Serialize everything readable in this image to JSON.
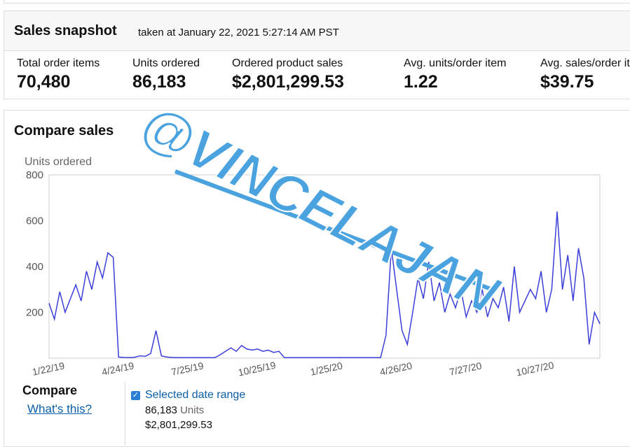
{
  "header": {
    "title": "Sales snapshot",
    "subtitle": "taken at January 22, 2021 5:27:14 AM PST"
  },
  "metrics": [
    {
      "label": "Total order items",
      "value": "70,480"
    },
    {
      "label": "Units ordered",
      "value": "86,183"
    },
    {
      "label": "Ordered product sales",
      "value": "$2,801,299.53"
    },
    {
      "label": "Avg. units/order item",
      "value": "1.22"
    },
    {
      "label": "Avg. sales/order item",
      "value": "$39.75"
    }
  ],
  "chart_data": {
    "type": "line",
    "title": "Compare sales",
    "y_label": "Units ordered",
    "color": "#3b3fd8",
    "categories": [
      "1/22/19",
      null,
      null,
      null,
      null,
      null,
      null,
      null,
      null,
      null,
      null,
      null,
      null,
      "4/24/19",
      null,
      null,
      null,
      null,
      null,
      null,
      null,
      null,
      null,
      null,
      null,
      null,
      "7/25/19",
      null,
      null,
      null,
      null,
      null,
      null,
      null,
      null,
      null,
      null,
      null,
      null,
      "10/25/19",
      null,
      null,
      null,
      null,
      null,
      null,
      null,
      null,
      null,
      null,
      null,
      null,
      "1/25/20",
      null,
      null,
      null,
      null,
      null,
      null,
      null,
      null,
      null,
      null,
      null,
      null,
      "4/26/20",
      null,
      null,
      null,
      null,
      null,
      null,
      null,
      null,
      null,
      null,
      null,
      null,
      "7/27/20",
      null,
      null,
      null,
      null,
      null,
      null,
      null,
      null,
      null,
      null,
      null,
      null,
      "10/27/20",
      null,
      null,
      null,
      null,
      null,
      null,
      null,
      null,
      null,
      null,
      null,
      null
    ],
    "values": [
      240,
      170,
      290,
      200,
      260,
      320,
      250,
      380,
      300,
      420,
      350,
      460,
      440,
      5,
      3,
      2,
      4,
      10,
      8,
      20,
      120,
      10,
      5,
      3,
      2,
      2,
      2,
      2,
      2,
      2,
      2,
      2,
      15,
      30,
      45,
      30,
      55,
      40,
      35,
      40,
      30,
      35,
      25,
      30,
      2,
      2,
      2,
      2,
      2,
      2,
      2,
      2,
      2,
      2,
      2,
      2,
      2,
      2,
      2,
      2,
      2,
      2,
      2,
      100,
      480,
      300,
      120,
      60,
      200,
      350,
      260,
      420,
      250,
      330,
      200,
      280,
      220,
      300,
      180,
      250,
      200,
      300,
      180,
      260,
      220,
      310,
      160,
      400,
      200,
      250,
      300,
      260,
      380,
      200,
      300,
      640,
      300,
      450,
      250,
      480,
      350,
      60,
      200,
      150
    ],
    "ylim": [
      0,
      800
    ],
    "yticks": [
      200,
      400,
      600,
      800
    ],
    "grid": false
  },
  "compare": {
    "title": "Compare",
    "link": "What's this?",
    "range": "Selected date range",
    "units": "86,183",
    "units_label": "Units",
    "sales": "$2,801,299.53"
  },
  "watermark": "@VINCELAJAN"
}
